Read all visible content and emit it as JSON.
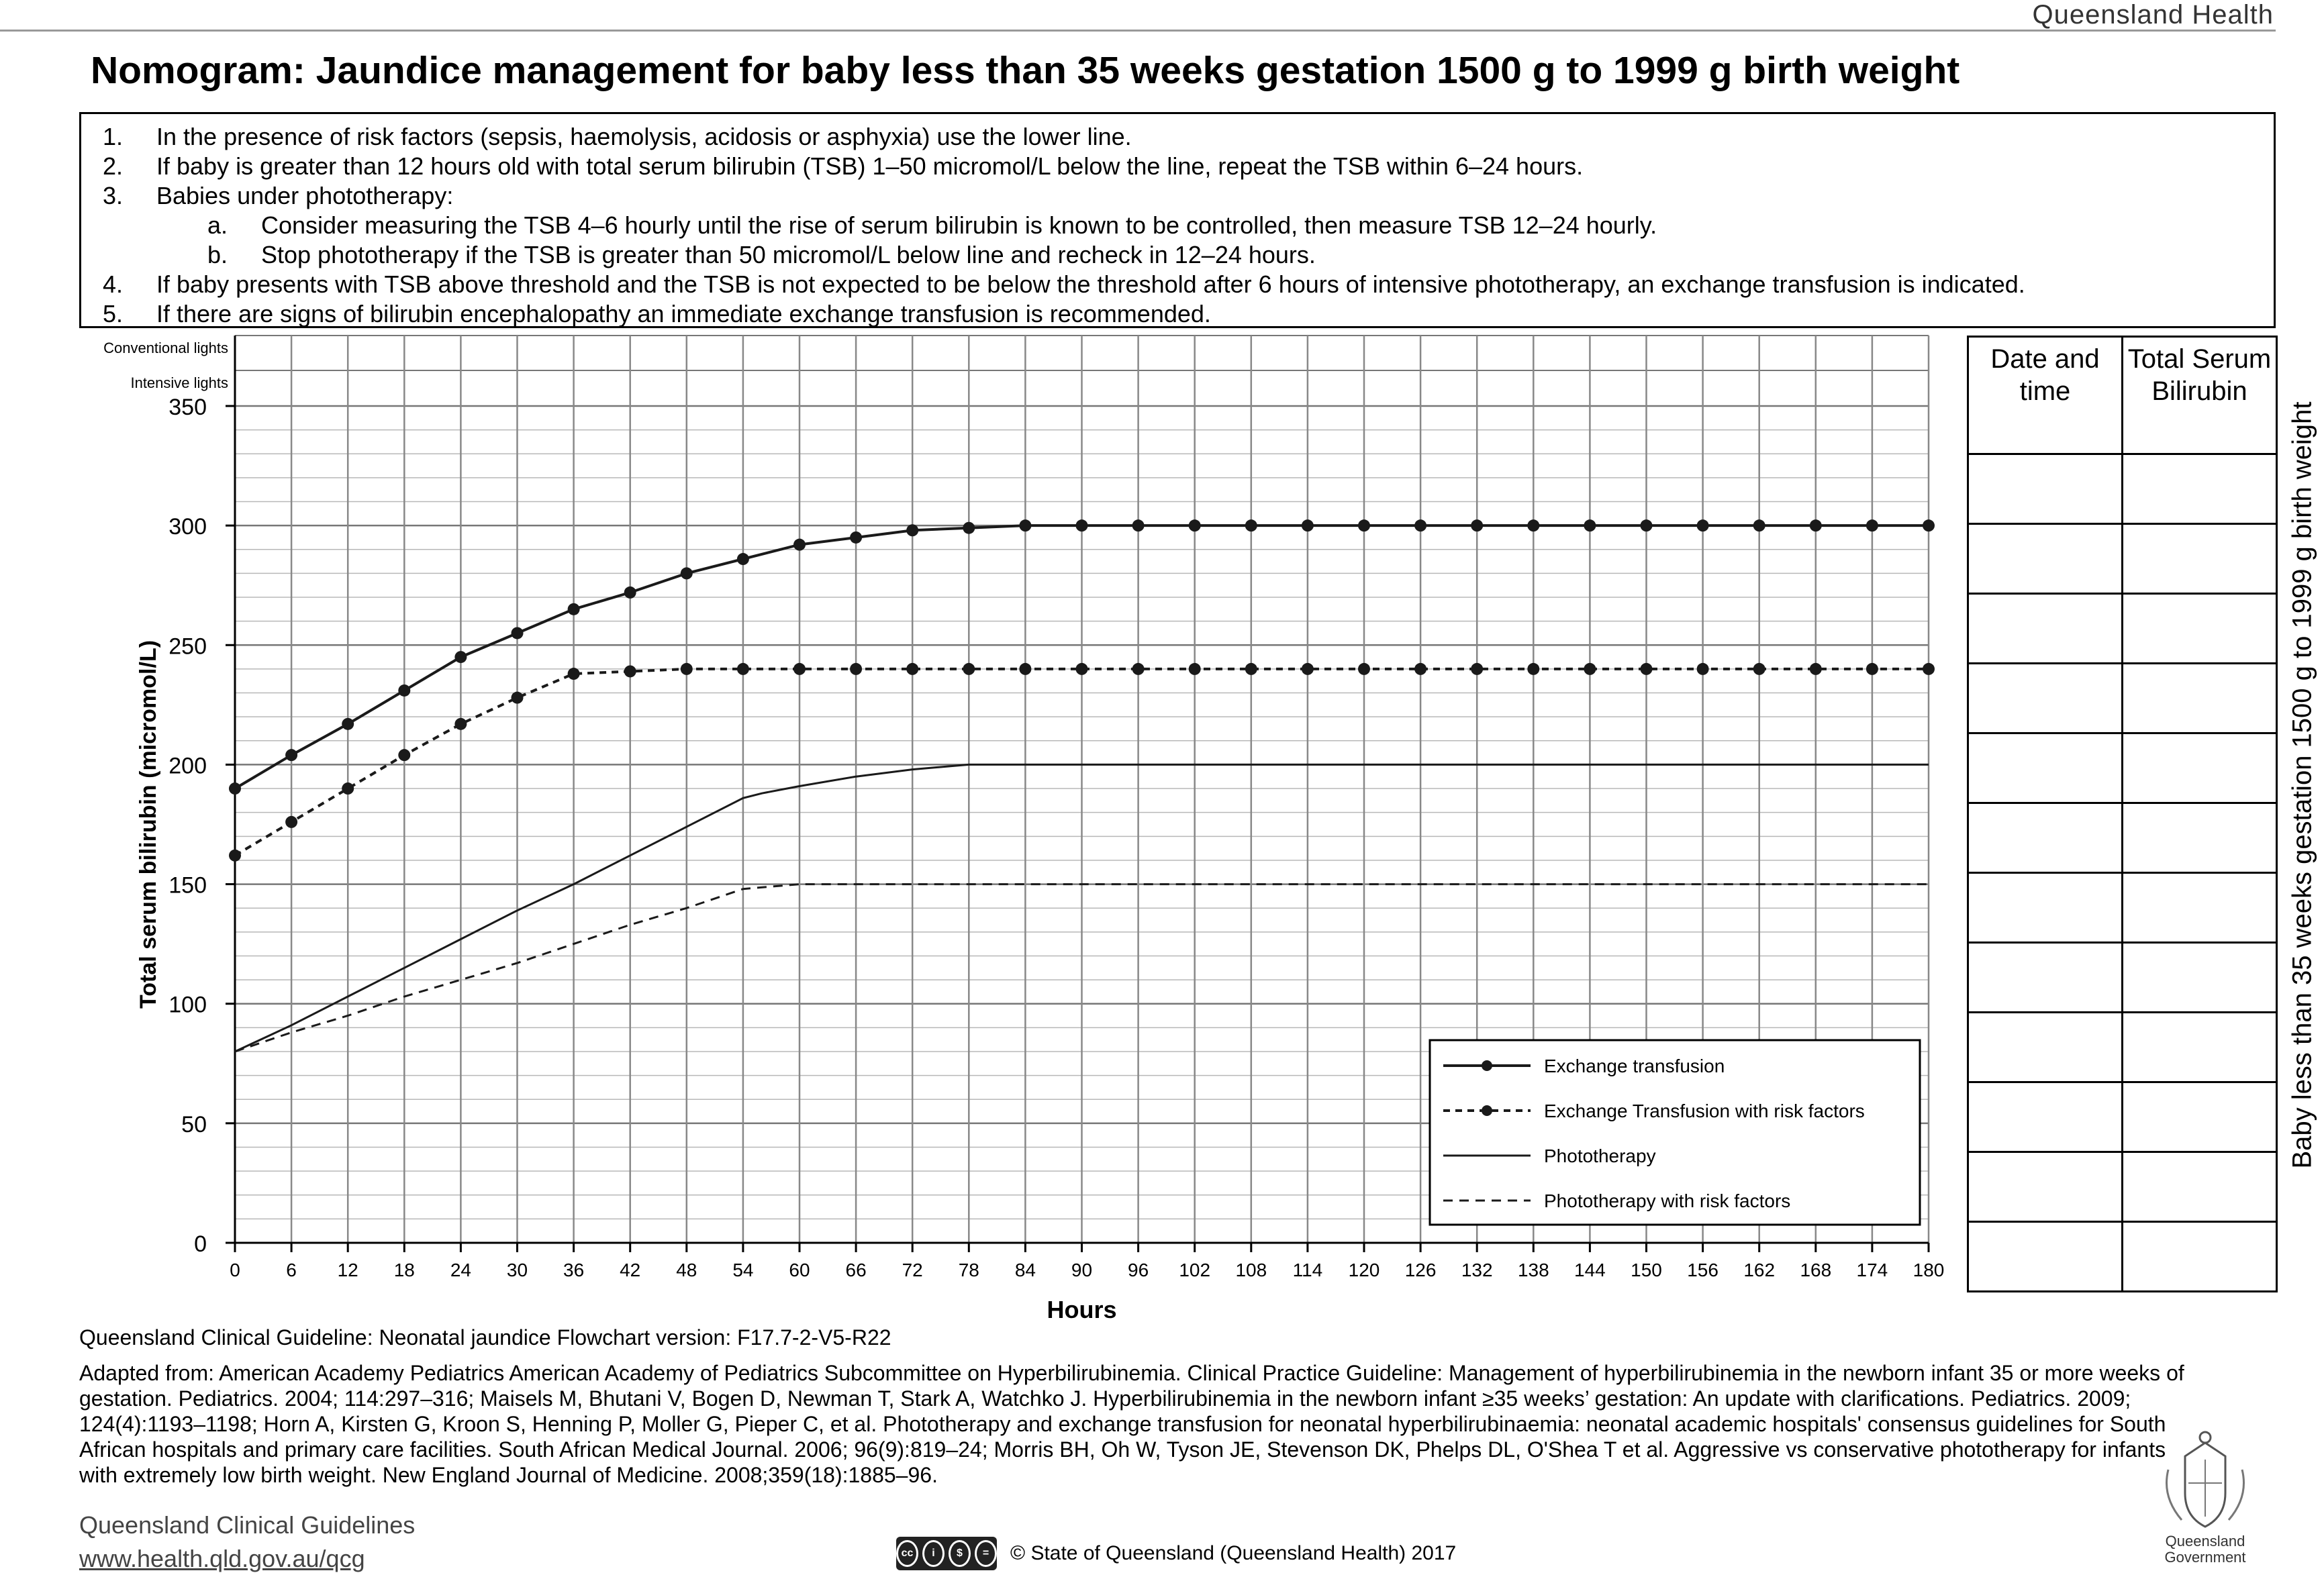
{
  "header": {
    "brand": "Queensland Health",
    "title": "Nomogram: Jaundice management for baby less than 35 weeks gestation 1500 g to 1999 g birth weight"
  },
  "instructions": [
    {
      "num": "1.",
      "text": "In the presence of risk factors (sepsis, haemolysis, acidosis or asphyxia) use the lower line."
    },
    {
      "num": "2.",
      "text": "If baby is greater than 12 hours old with total serum bilirubin (TSB) 1–50 micromol/L below the line, repeat the TSB within 6–24 hours."
    },
    {
      "num": "3.",
      "text": "Babies under phototherapy:"
    },
    {
      "num": "a.",
      "text": "Consider measuring the TSB 4–6 hourly until the rise of serum bilirubin is known to be controlled, then measure TSB 12–24 hourly.",
      "sub": true
    },
    {
      "num": "b.",
      "text": "Stop phototherapy if the TSB is greater than 50 micromol/L below line and recheck in 12–24 hours.",
      "sub": true
    },
    {
      "num": "4.",
      "text": "If baby presents with TSB above threshold and the TSB is not expected to be below the threshold after 6 hours of intensive phototherapy, an exchange transfusion is indicated."
    },
    {
      "num": "5.",
      "text": "If there are signs of bilirubin encephalopathy an immediate exchange transfusion is recommended."
    }
  ],
  "chart_data": {
    "type": "line",
    "xlabel": "Hours",
    "ylabel": "Total serum bilirubin (micromol/L)",
    "row_labels": [
      "Conventional lights",
      "Intensive lights"
    ],
    "xlim": [
      0,
      180
    ],
    "ylim": [
      0,
      350
    ],
    "x_ticks": [
      0,
      6,
      12,
      18,
      24,
      30,
      36,
      42,
      48,
      54,
      60,
      66,
      72,
      78,
      84,
      90,
      96,
      102,
      108,
      114,
      120,
      126,
      132,
      138,
      144,
      150,
      156,
      162,
      168,
      174,
      180
    ],
    "y_ticks": [
      0,
      50,
      100,
      150,
      200,
      250,
      300,
      350
    ],
    "grid": true,
    "legend_position": "bottom-right",
    "series": [
      {
        "name": "Exchange transfusion",
        "style": "solid-dots",
        "x": [
          0,
          6,
          12,
          18,
          24,
          30,
          36,
          42,
          48,
          54,
          60,
          66,
          72,
          78,
          84,
          90,
          96,
          102,
          108,
          114,
          120,
          126,
          132,
          138,
          144,
          150,
          156,
          162,
          168,
          174,
          180
        ],
        "y": [
          190,
          204,
          217,
          231,
          245,
          255,
          265,
          272,
          280,
          286,
          292,
          295,
          298,
          299,
          300,
          300,
          300,
          300,
          300,
          300,
          300,
          300,
          300,
          300,
          300,
          300,
          300,
          300,
          300,
          300,
          300
        ]
      },
      {
        "name": "Exchange Transfusion with risk factors",
        "style": "dashed-dots",
        "x": [
          0,
          6,
          12,
          18,
          24,
          30,
          36,
          42,
          48,
          54,
          60,
          66,
          72,
          78,
          84,
          90,
          96,
          102,
          108,
          114,
          120,
          126,
          132,
          138,
          144,
          150,
          156,
          162,
          168,
          174,
          180
        ],
        "y": [
          162,
          176,
          190,
          204,
          217,
          228,
          238,
          239,
          240,
          240,
          240,
          240,
          240,
          240,
          240,
          240,
          240,
          240,
          240,
          240,
          240,
          240,
          240,
          240,
          240,
          240,
          240,
          240,
          240,
          240,
          240
        ]
      },
      {
        "name": "Phototherapy",
        "style": "solid",
        "x": [
          0,
          6,
          12,
          18,
          24,
          30,
          36,
          42,
          48,
          54,
          56,
          60,
          66,
          72,
          78,
          84,
          180
        ],
        "y": [
          80,
          91,
          103,
          115,
          127,
          139,
          150,
          162,
          174,
          186,
          188,
          191,
          195,
          198,
          200,
          200,
          200
        ]
      },
      {
        "name": "Phototherapy with risk factors",
        "style": "dashed",
        "x": [
          0,
          6,
          12,
          18,
          24,
          30,
          36,
          42,
          48,
          54,
          60,
          180
        ],
        "y": [
          80,
          88,
          95,
          103,
          110,
          117,
          125,
          133,
          140,
          148,
          150,
          150
        ]
      }
    ]
  },
  "record_table": {
    "headers": [
      "Date and time",
      "Total Serum Bilirubin"
    ],
    "row_count": 12
  },
  "side_label": "Baby less than 35 weeks gestation 1500 g to 1999 g birth weight",
  "footer": {
    "guideline_version": "Queensland Clinical Guideline: Neonatal jaundice Flowchart version: F17.7-2-V5-R22",
    "adapted_from": "Adapted from: American Academy Pediatrics American Academy of Pediatrics Subcommittee on Hyperbilirubinemia. Clinical Practice Guideline: Management of hyperbilirubinemia in the newborn infant 35 or more weeks of gestation. Pediatrics. 2004; 114:297–316; Maisels M, Bhutani V, Bogen D, Newman T, Stark A, Watchko J. Hyperbilirubinemia in the newborn infant ≥35 weeks’ gestation: An update with clarifications. Pediatrics. 2009; 124(4):1193–1198; Horn A, Kirsten G, Kroon S, Henning P, Moller G, Pieper C, et al. Phototherapy and exchange transfusion for neonatal hyperbilirubinaemia: neonatal academic hospitals' consensus guidelines for South African hospitals and primary care facilities. South African Medical Journal. 2006; 96(9):819–24; Morris BH, Oh W, Tyson JE, Stevenson DK, Phelps DL, O'Shea T et al. Aggressive vs conservative phototherapy for infants with extremely low birth weight. New England Journal of Medicine. 2008;359(18):1885–96.",
    "org_name": "Queensland Clinical Guidelines",
    "org_url": "www.health.qld.gov.au/qcg",
    "cc_badge": "cc BY NC ND",
    "copyright": "© State of Queensland (Queensland Health) 2017",
    "logo_text": "Queensland Government"
  }
}
